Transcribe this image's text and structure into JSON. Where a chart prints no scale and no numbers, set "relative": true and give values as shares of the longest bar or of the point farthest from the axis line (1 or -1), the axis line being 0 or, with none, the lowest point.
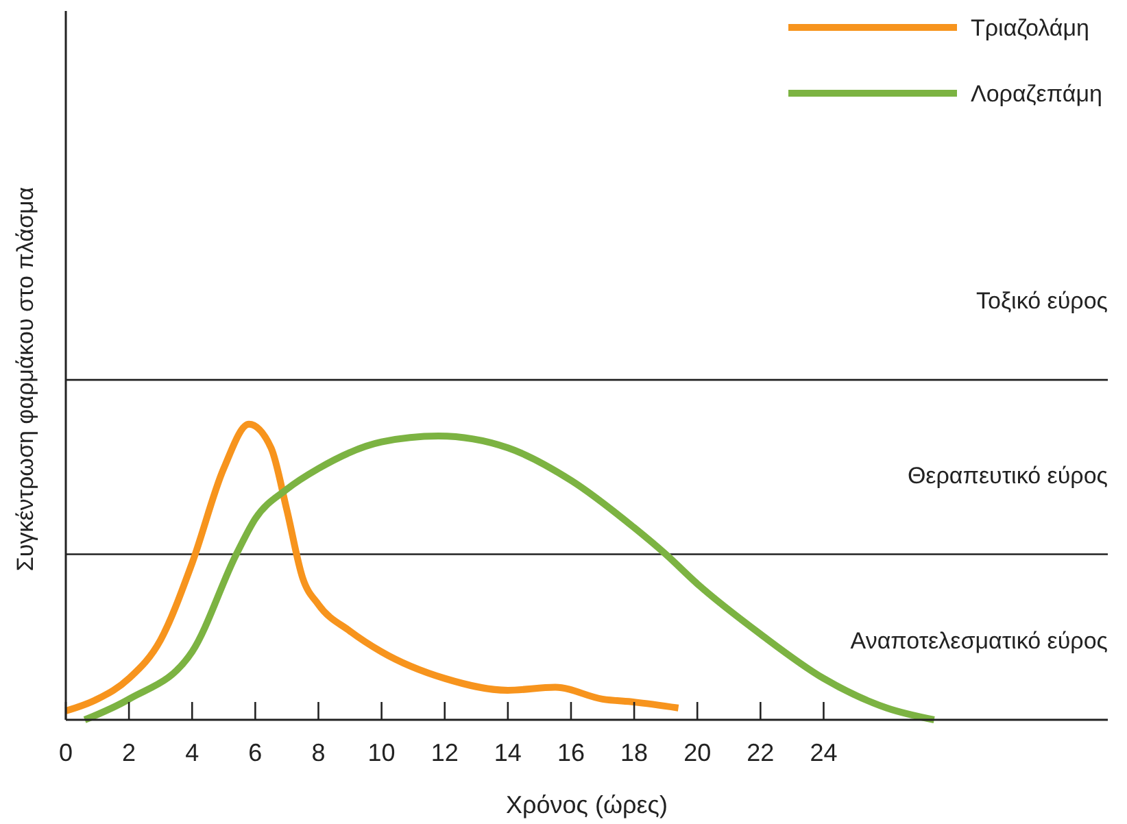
{
  "chart_data": {
    "type": "line",
    "relative": true,
    "xlabel": "Χρόνος (ώρες)",
    "ylabel": "Συγκέντρωση φαρμάκου στο πλάσμα",
    "xlim": [
      0,
      33
    ],
    "xticks": [
      0,
      2,
      4,
      6,
      8,
      10,
      12,
      14,
      16,
      18,
      20,
      22,
      24
    ],
    "legend": "top right",
    "grid": false,
    "line_style": "solid",
    "series": [
      {
        "name": "Τριαζολάμη",
        "color": "#f7941d",
        "x": [
          0,
          1,
          2,
          3,
          4,
          5,
          5.8,
          6.5,
          7,
          7.5,
          8,
          9,
          10,
          12,
          14,
          15.5,
          17,
          18,
          19.4
        ],
        "values": [
          0.03,
          0.07,
          0.14,
          0.27,
          0.53,
          0.85,
          1,
          0.92,
          0.71,
          0.48,
          0.39,
          0.3,
          0.23,
          0.14,
          0.1,
          0.11,
          0.07,
          0.06,
          0.04
        ]
      },
      {
        "name": "Λοραζεπάμη",
        "color": "#7cb342",
        "x": [
          0.6,
          2,
          4,
          5.4,
          6,
          7,
          8,
          10,
          11.8,
          14,
          16,
          18,
          19,
          20,
          22,
          24,
          26,
          27.5
        ],
        "values": [
          0,
          0.07,
          0.23,
          0.56,
          0.68,
          0.78,
          0.85,
          0.94,
          0.96,
          0.92,
          0.81,
          0.65,
          0.56,
          0.46,
          0.29,
          0.14,
          0.04,
          0
        ]
      }
    ],
    "ref_lines": [
      {
        "axis": "y",
        "value": 0.56
      },
      {
        "axis": "y",
        "value": 1.15
      }
    ],
    "annotations": [
      "Τοξικό εύρος",
      "Θεραπευτικό εύρος",
      "Αναποτελεσματικό εύρος"
    ]
  }
}
